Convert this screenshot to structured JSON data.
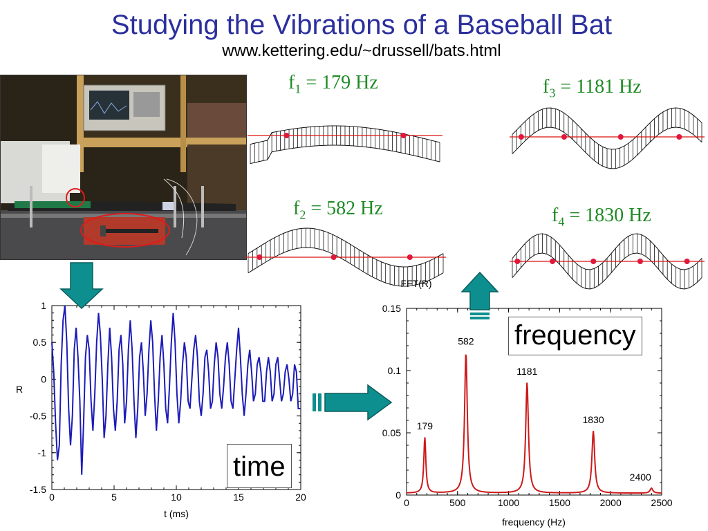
{
  "slide": {
    "title": "Studying the Vibrations of a Baseball Bat",
    "url": "www.kettering.edu/~drussell/bats.html"
  },
  "modes": [
    {
      "f": "f",
      "sub": "1",
      "text": "= 179 Hz"
    },
    {
      "f": "f",
      "sub": "2",
      "text": "= 582 Hz"
    },
    {
      "f": "f",
      "sub": "3",
      "text": "= 1181 Hz"
    },
    {
      "f": "f",
      "sub": "4",
      "text": "= 1830 Hz"
    }
  ],
  "labels": {
    "time_box": "time",
    "frequency_box": "frequency"
  },
  "colors": {
    "title": "#2b2f9c",
    "mode_label": "#1e8a24",
    "time_trace": "#1c1cb8",
    "fft_trace": "#cc1a1a",
    "arrow": "#0e8f8f"
  },
  "chart_data": [
    {
      "type": "line",
      "xlabel": "t (ms)",
      "ylabel": "R",
      "xlim": [
        0,
        20
      ],
      "ylim": [
        -1.5,
        1
      ],
      "xticks": [
        "0",
        "5",
        "10",
        "15",
        "20"
      ],
      "yticks": [
        "1",
        "0.5",
        "0",
        "-0.5",
        "-1",
        "-1.5"
      ],
      "series": [
        {
          "x": [
            0.0,
            0.15,
            0.3,
            0.45,
            0.6,
            0.75,
            0.9,
            1.05,
            1.2,
            1.35,
            1.5,
            1.65,
            1.8,
            1.95,
            2.1,
            2.25,
            2.4,
            2.55,
            2.7,
            2.85,
            3.0,
            3.15,
            3.3,
            3.45,
            3.6,
            3.75,
            3.9,
            4.05,
            4.2,
            4.35,
            4.5,
            4.65,
            4.8,
            4.95,
            5.1,
            5.25,
            5.4,
            5.55,
            5.7,
            5.85,
            6.0,
            6.15,
            6.3,
            6.45,
            6.6,
            6.75,
            6.9,
            7.05,
            7.2,
            7.35,
            7.5,
            7.65,
            7.8,
            7.95,
            8.1,
            8.25,
            8.4,
            8.55,
            8.7,
            8.85,
            9.0,
            9.15,
            9.3,
            9.45,
            9.6,
            9.75,
            9.9,
            10.05,
            10.2,
            10.35,
            10.5,
            10.65,
            10.8,
            10.95,
            11.1,
            11.25,
            11.4,
            11.55,
            11.7,
            11.85,
            12.0,
            12.15,
            12.3,
            12.45,
            12.6,
            12.75,
            12.9,
            13.05,
            13.2,
            13.35,
            13.5,
            13.65,
            13.8,
            13.95,
            14.1,
            14.25,
            14.4,
            14.55,
            14.7,
            14.85,
            15.0,
            15.15,
            15.3,
            15.45,
            15.6,
            15.75,
            15.9,
            16.05,
            16.2,
            16.35,
            16.5,
            16.65,
            16.8,
            16.95,
            17.1,
            17.25,
            17.4,
            17.55,
            17.7,
            17.85,
            18.0,
            18.15,
            18.3,
            18.45,
            18.6,
            18.75,
            18.9,
            19.05,
            19.2,
            19.35,
            19.5,
            19.65,
            19.8,
            19.95
          ],
          "y": [
            0.5,
            0.1,
            -0.6,
            -1.1,
            -0.9,
            0.2,
            0.8,
            1.0,
            0.5,
            -0.4,
            -0.9,
            -0.5,
            0.4,
            0.7,
            0.3,
            -0.3,
            -1.3,
            -0.6,
            0.3,
            0.6,
            0.4,
            -0.3,
            -0.7,
            -0.2,
            0.5,
            0.9,
            0.6,
            0.0,
            -0.8,
            -0.5,
            0.2,
            0.7,
            0.3,
            -0.4,
            -0.7,
            -0.3,
            0.4,
            0.6,
            0.2,
            -0.6,
            -0.3,
            0.4,
            0.8,
            0.4,
            -0.3,
            -0.8,
            -0.4,
            0.3,
            0.5,
            0.1,
            -0.5,
            -0.2,
            0.4,
            0.8,
            0.5,
            -0.2,
            -0.7,
            -0.3,
            0.3,
            0.6,
            0.2,
            -0.4,
            -0.6,
            -0.1,
            0.5,
            0.9,
            0.5,
            -0.2,
            -0.6,
            -0.3,
            0.2,
            0.5,
            0.3,
            -0.3,
            -0.4,
            0.0,
            0.4,
            0.6,
            0.3,
            -0.3,
            -0.5,
            -0.2,
            0.3,
            0.4,
            0.1,
            -0.4,
            -0.3,
            0.2,
            0.5,
            0.3,
            -0.2,
            -0.4,
            -0.1,
            0.3,
            0.5,
            0.2,
            -0.3,
            -0.4,
            0.0,
            0.4,
            0.7,
            0.3,
            -0.2,
            -0.5,
            -0.2,
            0.2,
            0.4,
            0.1,
            -0.3,
            -0.2,
            0.2,
            0.3,
            0.1,
            -0.3,
            -0.3,
            0.1,
            0.3,
            0.1,
            -0.3,
            -0.2,
            0.2,
            0.3,
            0.0,
            -0.3,
            -0.2,
            0.1,
            0.2,
            0.0,
            -0.3,
            -0.2,
            0.2,
            0.1,
            -0.4,
            -0.4
          ]
        }
      ]
    },
    {
      "type": "line",
      "title": "FFT(R)",
      "xlabel": "frequency (Hz)",
      "ylabel": "",
      "xlim": [
        0,
        2500
      ],
      "ylim": [
        0,
        0.15
      ],
      "xticks": [
        "0",
        "500",
        "1000",
        "1500",
        "2000",
        "2500"
      ],
      "yticks": [
        "0.15",
        "0.1",
        "0.05",
        "0"
      ],
      "peaks": [
        {
          "x": 179,
          "y": 0.045,
          "label": "179"
        },
        {
          "x": 582,
          "y": 0.113,
          "label": "582"
        },
        {
          "x": 1181,
          "y": 0.089,
          "label": "1181"
        },
        {
          "x": 1830,
          "y": 0.05,
          "label": "1830"
        },
        {
          "x": 2400,
          "y": 0.004,
          "label": "2400"
        }
      ]
    }
  ]
}
